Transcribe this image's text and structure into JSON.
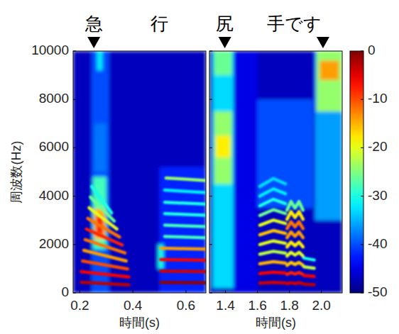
{
  "chart_data": [
    {
      "type": "heatmap",
      "annotations": [
        {
          "text": "急",
          "x": 0.253
        },
        {
          "text": "行",
          "x": 0.5
        }
      ],
      "markers": [
        0.253
      ],
      "x_label": "時間(s)",
      "y_label": "周波数(Hz)",
      "xlim": [
        0.175,
        0.675
      ],
      "xticks": [
        0.2,
        0.4,
        0.6
      ],
      "ylim": [
        0,
        10000
      ],
      "yticks": [
        0,
        2000,
        4000,
        6000,
        8000,
        10000
      ],
      "cells": [
        {
          "x": [
            0.175,
            0.675
          ],
          "y": [
            0,
            10000
          ],
          "value": -47
        },
        {
          "x": [
            0.245,
            0.31
          ],
          "y": [
            0,
            10000
          ],
          "value": -40
        },
        {
          "x": [
            0.255,
            0.3
          ],
          "y": [
            5000,
            7000
          ],
          "value": -38
        },
        {
          "x": [
            0.265,
            0.285
          ],
          "y": [
            9200,
            10000
          ],
          "value": -32
        },
        {
          "x": [
            0.25,
            0.3
          ],
          "y": [
            1800,
            4800
          ],
          "value": -28
        },
        {
          "x": [
            0.255,
            0.295
          ],
          "y": [
            2200,
            3500
          ],
          "value": -15
        },
        {
          "x": [
            0.26,
            0.29
          ],
          "y": [
            2400,
            3200
          ],
          "value": -8
        },
        {
          "x": [
            0.5,
            0.67
          ],
          "y": [
            0,
            5200
          ],
          "value": -42
        },
        {
          "x": [
            0.495,
            0.515
          ],
          "y": [
            1000,
            2000
          ],
          "value": -30
        }
      ],
      "harmonics": [
        {
          "x": [
            0.205,
            0.385
          ],
          "y": [
            440,
            330
          ],
          "level": -3
        },
        {
          "x": [
            0.205,
            0.385
          ],
          "y": [
            880,
            660
          ],
          "level": -6
        },
        {
          "x": [
            0.21,
            0.38
          ],
          "y": [
            1320,
            990
          ],
          "level": -10
        },
        {
          "x": [
            0.215,
            0.375
          ],
          "y": [
            1760,
            1320
          ],
          "level": -14
        },
        {
          "x": [
            0.22,
            0.37
          ],
          "y": [
            2200,
            1650
          ],
          "level": -12
        },
        {
          "x": [
            0.225,
            0.36
          ],
          "y": [
            2640,
            1980
          ],
          "level": -8
        },
        {
          "x": [
            0.23,
            0.35
          ],
          "y": [
            3080,
            2310
          ],
          "level": -12
        },
        {
          "x": [
            0.235,
            0.34
          ],
          "y": [
            3520,
            2640
          ],
          "level": -20
        },
        {
          "x": [
            0.24,
            0.33
          ],
          "y": [
            3960,
            2970
          ],
          "level": -26
        },
        {
          "x": [
            0.245,
            0.32
          ],
          "y": [
            4400,
            3300
          ],
          "level": -30
        },
        {
          "x": [
            0.505,
            0.672
          ],
          "y": [
            430,
            420
          ],
          "level": -1
        },
        {
          "x": [
            0.505,
            0.672
          ],
          "y": [
            900,
            880
          ],
          "level": -4
        },
        {
          "x": [
            0.505,
            0.672
          ],
          "y": [
            1380,
            1350
          ],
          "level": -6
        },
        {
          "x": [
            0.505,
            0.672
          ],
          "y": [
            1850,
            1810
          ],
          "level": -14
        },
        {
          "x": [
            0.52,
            0.672
          ],
          "y": [
            2330,
            2280
          ],
          "level": -28
        },
        {
          "x": [
            0.52,
            0.672
          ],
          "y": [
            2800,
            2740
          ],
          "level": -28
        },
        {
          "x": [
            0.52,
            0.672
          ],
          "y": [
            3280,
            3210
          ],
          "level": -30
        },
        {
          "x": [
            0.52,
            0.672
          ],
          "y": [
            3750,
            3670
          ],
          "level": -30
        },
        {
          "x": [
            0.52,
            0.672
          ],
          "y": [
            4250,
            4150
          ],
          "level": -32
        },
        {
          "x": [
            0.525,
            0.672
          ],
          "y": [
            4750,
            4650
          ],
          "level": -24
        }
      ]
    },
    {
      "type": "heatmap",
      "annotations": [
        {
          "text": "尻",
          "x": 1.396
        },
        {
          "text": "手です",
          "x": 1.83
        }
      ],
      "markers": [
        1.396,
        2.01
      ],
      "x_label": "時間(s)",
      "xlim": [
        1.3,
        2.13
      ],
      "xticks": [
        1.4,
        1.6,
        1.8,
        {
          "value": 2,
          "label": "2.0"
        }
      ],
      "ylim": [
        0,
        10000
      ],
      "yticks": [
        0,
        2000,
        4000,
        6000,
        8000,
        10000
      ],
      "tick_labels": "x",
      "cells": [
        {
          "x": [
            1.3,
            2.13
          ],
          "y": [
            0,
            10000
          ],
          "value": -47
        },
        {
          "x": [
            1.45,
            1.6
          ],
          "y": [
            0,
            10000
          ],
          "value": -45
        },
        {
          "x": [
            1.6,
            1.95
          ],
          "y": [
            3500,
            8000
          ],
          "value": -40
        },
        {
          "x": [
            1.32,
            1.45
          ],
          "y": [
            200,
            10000
          ],
          "value": -33
        },
        {
          "x": [
            1.33,
            1.44
          ],
          "y": [
            4500,
            7500
          ],
          "value": -24
        },
        {
          "x": [
            1.34,
            1.43
          ],
          "y": [
            5600,
            6500
          ],
          "value": -18
        },
        {
          "x": [
            1.33,
            1.44
          ],
          "y": [
            9000,
            10000
          ],
          "value": -26
        },
        {
          "x": [
            1.96,
            2.13
          ],
          "y": [
            3000,
            10000
          ],
          "value": -36
        },
        {
          "x": [
            1.97,
            2.13
          ],
          "y": [
            7500,
            10000
          ],
          "value": -24
        },
        {
          "x": [
            1.99,
            2.11
          ],
          "y": [
            8800,
            9600
          ],
          "value": -14
        }
      ],
      "harmonics": [
        {
          "x": [
            1.615,
            1.7,
            1.775
          ],
          "y": [
            400,
            430,
            410
          ],
          "level": -4
        },
        {
          "x": [
            1.615,
            1.7,
            1.775
          ],
          "y": [
            800,
            860,
            820
          ],
          "level": -6
        },
        {
          "x": [
            1.615,
            1.7,
            1.775
          ],
          "y": [
            1200,
            1290,
            1230
          ],
          "level": -15
        },
        {
          "x": [
            1.615,
            1.7,
            1.775
          ],
          "y": [
            1600,
            1720,
            1640
          ],
          "level": -22
        },
        {
          "x": [
            1.615,
            1.7,
            1.775
          ],
          "y": [
            2000,
            2150,
            2050
          ],
          "level": -20
        },
        {
          "x": [
            1.615,
            1.7,
            1.775
          ],
          "y": [
            2400,
            2580,
            2460
          ],
          "level": -16
        },
        {
          "x": [
            1.615,
            1.7,
            1.775
          ],
          "y": [
            2800,
            3010,
            2870
          ],
          "level": -20
        },
        {
          "x": [
            1.615,
            1.7,
            1.775
          ],
          "y": [
            3200,
            3440,
            3280
          ],
          "level": -26
        },
        {
          "x": [
            1.615,
            1.7,
            1.775
          ],
          "y": [
            3600,
            3870,
            3690
          ],
          "level": -30
        },
        {
          "x": [
            1.615,
            1.7,
            1.775
          ],
          "y": [
            4000,
            4300,
            4100
          ],
          "level": -32
        },
        {
          "x": [
            1.615,
            1.7,
            1.775
          ],
          "y": [
            4400,
            4730,
            4510
          ],
          "level": -33
        },
        {
          "x": [
            1.785,
            1.81,
            1.835,
            1.86,
            1.885
          ],
          "y": [
            380,
            420,
            390,
            420,
            380
          ],
          "level": -4
        },
        {
          "x": [
            1.785,
            1.81,
            1.835,
            1.86,
            1.885
          ],
          "y": [
            760,
            840,
            780,
            840,
            760
          ],
          "level": -8
        },
        {
          "x": [
            1.785,
            1.81,
            1.835,
            1.86,
            1.885
          ],
          "y": [
            1140,
            1260,
            1170,
            1260,
            1140
          ],
          "level": -16
        },
        {
          "x": [
            1.785,
            1.81,
            1.835,
            1.86,
            1.885
          ],
          "y": [
            1520,
            1680,
            1560,
            1680,
            1520
          ],
          "level": -20
        },
        {
          "x": [
            1.785,
            1.81,
            1.835,
            1.86,
            1.885
          ],
          "y": [
            1900,
            2100,
            1950,
            2100,
            1900
          ],
          "level": -18
        },
        {
          "x": [
            1.785,
            1.81,
            1.835,
            1.86,
            1.885
          ],
          "y": [
            2280,
            2520,
            2340,
            2520,
            2280
          ],
          "level": -14
        },
        {
          "x": [
            1.785,
            1.81,
            1.835,
            1.86,
            1.885
          ],
          "y": [
            2660,
            2940,
            2730,
            2940,
            2660
          ],
          "level": -12
        },
        {
          "x": [
            1.785,
            1.81,
            1.835,
            1.86,
            1.885
          ],
          "y": [
            3040,
            3360,
            3120,
            3360,
            3040
          ],
          "level": -18
        },
        {
          "x": [
            1.785,
            1.81,
            1.835,
            1.86,
            1.885
          ],
          "y": [
            3420,
            3780,
            3510,
            3780,
            3420
          ],
          "level": -26
        },
        {
          "x": [
            1.89,
            1.955
          ],
          "y": [
            360,
            340
          ],
          "level": -3
        },
        {
          "x": [
            1.89,
            1.955
          ],
          "y": [
            720,
            680
          ],
          "level": -6
        },
        {
          "x": [
            1.89,
            1.955
          ],
          "y": [
            1080,
            1020
          ],
          "level": -22
        },
        {
          "x": [
            1.89,
            1.955
          ],
          "y": [
            1440,
            1360
          ],
          "level": -30
        }
      ]
    },
    {
      "type": "colorbar",
      "ylim": [
        -50,
        0
      ],
      "yticks": [
        0,
        -10,
        -20,
        -30,
        -40,
        -50
      ]
    }
  ]
}
